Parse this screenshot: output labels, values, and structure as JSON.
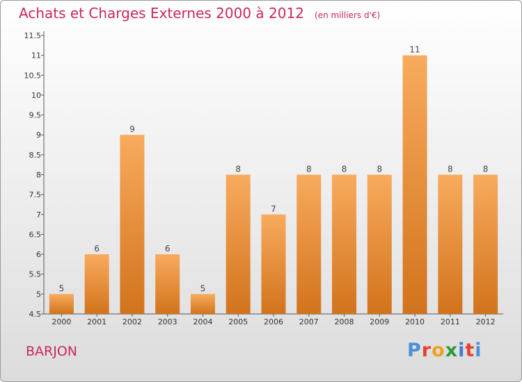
{
  "header": {
    "title": "Achats et Charges Externes 2000 à 2012",
    "unit": "(en milliers d'€)"
  },
  "footer": {
    "commune": "BARJON",
    "logo_text": "Proxiti"
  },
  "colors": {
    "title": "#c8275c",
    "bar_top": "#f8ab5e",
    "bar_bottom": "#d2731c",
    "logo": [
      "#4a90d9",
      "#e8412c",
      "#f0a020",
      "#2a9d3c",
      "#3b7dd8",
      "#e8412c",
      "#4a90d9"
    ]
  },
  "chart_data": {
    "type": "bar",
    "title": "Achats et Charges Externes 2000 à 2012",
    "subtitle": "(en milliers d'€)",
    "categories": [
      "2000",
      "2001",
      "2002",
      "2003",
      "2004",
      "2005",
      "2006",
      "2007",
      "2008",
      "2009",
      "2010",
      "2011",
      "2012"
    ],
    "values": [
      5,
      6,
      9,
      6,
      5,
      8,
      7,
      8,
      8,
      8,
      11,
      8,
      8
    ],
    "value_labels": [
      "5",
      "6",
      "9",
      "6",
      "5",
      "8",
      "7",
      "8",
      "8",
      "8",
      "11",
      "8",
      "8"
    ],
    "yticks": [
      "4.5",
      "5",
      "5.5",
      "6",
      "6.5",
      "7",
      "7.5",
      "8",
      "8.5",
      "9",
      "9.5",
      "10",
      "10.5",
      "11",
      "11.5"
    ],
    "ylim": [
      4.5,
      11.5
    ],
    "grid": false,
    "legend": "none"
  }
}
